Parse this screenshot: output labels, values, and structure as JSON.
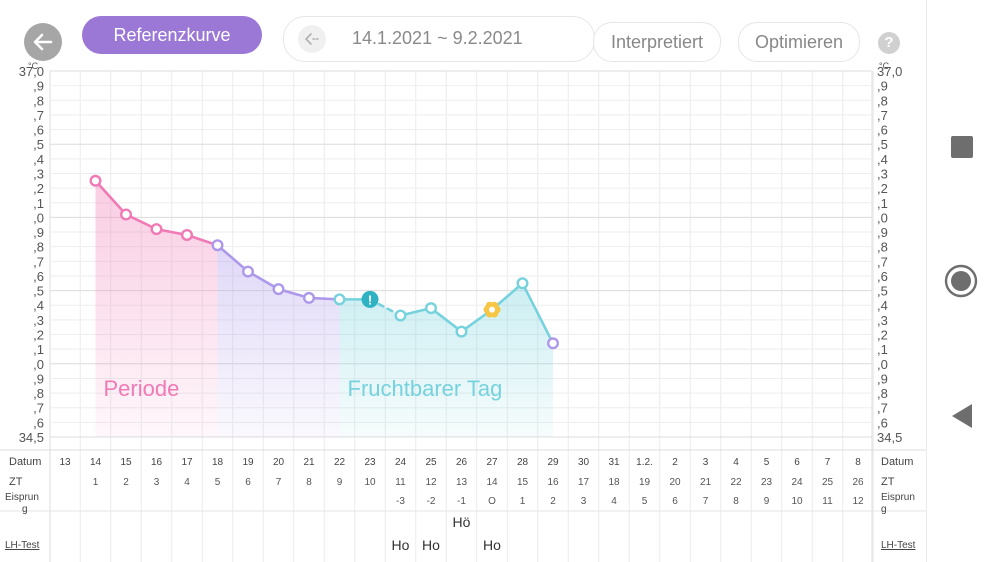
{
  "toolbar": {
    "reference_label": "Referenzkurve",
    "date_range": "14.1.2021 ~ 9.2.2021",
    "interpreted_label": "Interpretiert",
    "optimize_label": "Optimieren",
    "help_label": "?"
  },
  "colors": {
    "period": "#f07ab5",
    "post_period": "#ad98ea",
    "fertile": "#76d2dd",
    "accent": "#9b77d6"
  },
  "chart_data": {
    "type": "line",
    "unit": "°C",
    "ylim": [
      34.5,
      37.0
    ],
    "y_tick_step": 0.1,
    "y_top_label": "37,0",
    "y_bottom_label": "34,5",
    "grid": true,
    "row_labels": {
      "date": "Datum",
      "cycle_day": "ZT",
      "ovulation": "Eisprung",
      "lh": "LH-Test"
    },
    "dates": [
      "13",
      "14",
      "15",
      "16",
      "17",
      "18",
      "19",
      "20",
      "21",
      "22",
      "23",
      "24",
      "25",
      "26",
      "27",
      "28",
      "29",
      "30",
      "31",
      "1.2.",
      "2",
      "3",
      "4",
      "5",
      "6",
      "7",
      "8"
    ],
    "cycle_days": [
      "",
      "1",
      "2",
      "3",
      "4",
      "5",
      "6",
      "7",
      "8",
      "9",
      "10",
      "11",
      "12",
      "13",
      "14",
      "15",
      "16",
      "17",
      "18",
      "19",
      "20",
      "21",
      "22",
      "23",
      "24",
      "25",
      "26"
    ],
    "ovulation_days": [
      "",
      "",
      "",
      "",
      "",
      "",
      "",
      "",
      "",
      "",
      "",
      "-3",
      "-2",
      "-1",
      "O",
      "1",
      "2",
      "3",
      "4",
      "5",
      "6",
      "7",
      "8",
      "9",
      "10",
      "11",
      "12"
    ],
    "lh_tests": [
      {
        "date": "24",
        "label": "Ho"
      },
      {
        "date": "25",
        "label": "Ho"
      },
      {
        "date": "26",
        "label": "Hö"
      },
      {
        "date": "27",
        "label": "Ho"
      }
    ],
    "series": [
      {
        "date": "14",
        "temp": 36.25,
        "phase": "period"
      },
      {
        "date": "15",
        "temp": 36.02,
        "phase": "period"
      },
      {
        "date": "16",
        "temp": 35.92,
        "phase": "period"
      },
      {
        "date": "17",
        "temp": 35.88,
        "phase": "period"
      },
      {
        "date": "18",
        "temp": 35.81,
        "phase": "post"
      },
      {
        "date": "19",
        "temp": 35.63,
        "phase": "post"
      },
      {
        "date": "20",
        "temp": 35.51,
        "phase": "post"
      },
      {
        "date": "21",
        "temp": 35.45,
        "phase": "post"
      },
      {
        "date": "22",
        "temp": 35.44,
        "phase": "fertile"
      },
      {
        "date": "23",
        "temp": 35.44,
        "phase": "fertile",
        "marker": "exclamation"
      },
      {
        "date": "24",
        "temp": 35.33,
        "phase": "fertile"
      },
      {
        "date": "25",
        "temp": 35.38,
        "phase": "fertile"
      },
      {
        "date": "26",
        "temp": 35.22,
        "phase": "fertile"
      },
      {
        "date": "27",
        "temp": 35.37,
        "phase": "fertile",
        "marker": "flower"
      },
      {
        "date": "28",
        "temp": 35.55,
        "phase": "fertile"
      },
      {
        "date": "29",
        "temp": 35.14,
        "phase": "post"
      }
    ],
    "regions": [
      {
        "label": "Periode",
        "from": "14",
        "to": "18",
        "phase": "period"
      },
      {
        "label": "",
        "from": "18",
        "to": "22",
        "phase": "post"
      },
      {
        "label": "Fruchtbarer Tag",
        "from": "22",
        "to": "29",
        "phase": "fertile"
      }
    ]
  }
}
